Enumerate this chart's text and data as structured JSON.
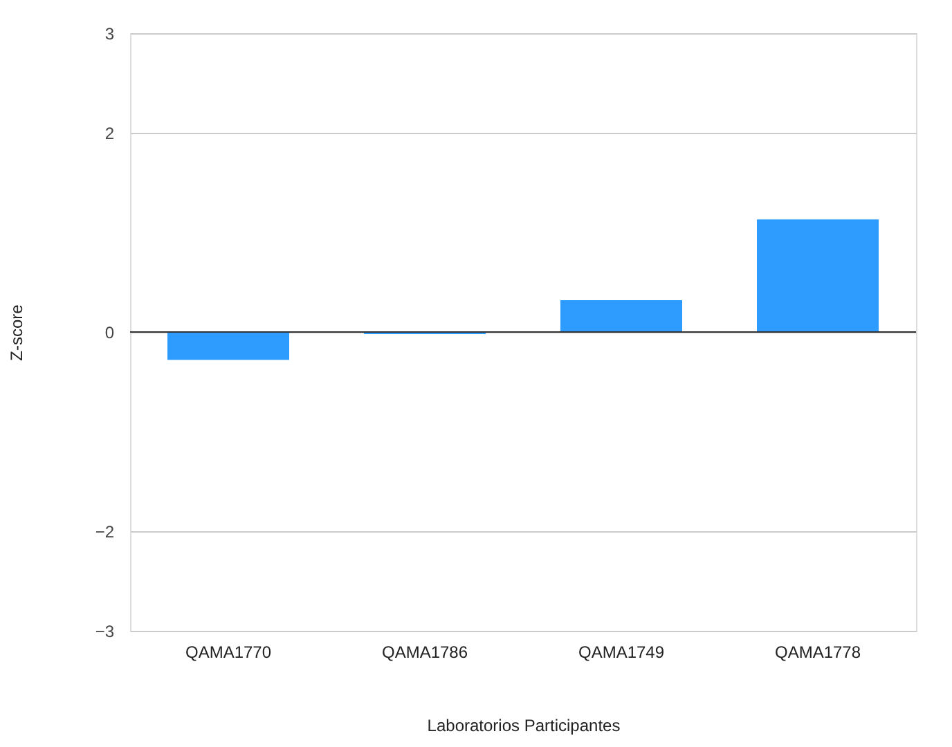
{
  "chart_data": {
    "type": "bar",
    "xlabel": "Laboratorios Participantes",
    "ylabel": "Z-score",
    "categories": [
      "QAMA1770",
      "QAMA1786",
      "QAMA1749",
      "QAMA1778"
    ],
    "values": [
      -0.28,
      -0.02,
      0.32,
      1.13
    ],
    "color": "#2e9bff",
    "ylim": [
      -3,
      3
    ],
    "yticks": [
      -3,
      -2,
      0,
      2,
      3
    ],
    "grid": "y"
  }
}
